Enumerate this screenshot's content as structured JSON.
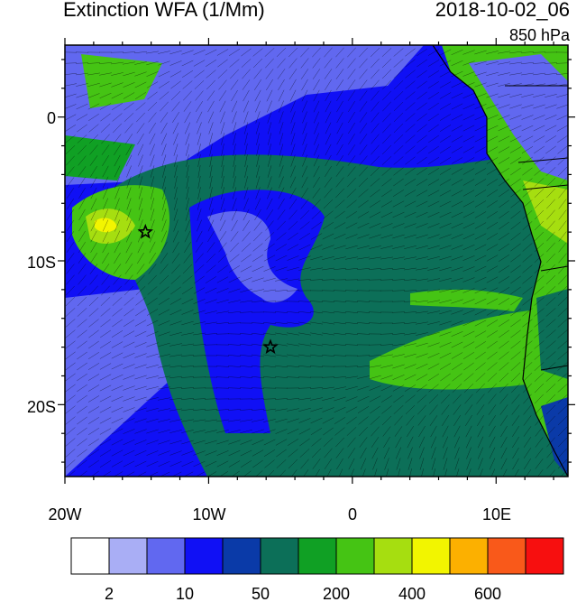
{
  "title": "Extinction WFA (1/Mm)",
  "datetime": "2018-10-02_06",
  "level": "850 hPa",
  "lat_labels": [
    "0",
    "10S",
    "20S"
  ],
  "lon_labels": [
    "20W",
    "10W",
    "0",
    "10E"
  ],
  "colorbar": {
    "colors": [
      "#ffffff",
      "#a9aef5",
      "#6168f0",
      "#1010f5",
      "#0a3aa8",
      "#0c6f58",
      "#10a024",
      "#45c414",
      "#a6de10",
      "#f2f500",
      "#fcb000",
      "#f9591a",
      "#f70f0f"
    ],
    "tick_labels": [
      "2",
      "10",
      "50",
      "200",
      "400",
      "600"
    ]
  },
  "markers": [
    {
      "name": "star-marker-west",
      "lon": -14.4,
      "lat": -8.0
    },
    {
      "name": "star-marker-central",
      "lon": -5.7,
      "lat": -16.0
    }
  ]
}
